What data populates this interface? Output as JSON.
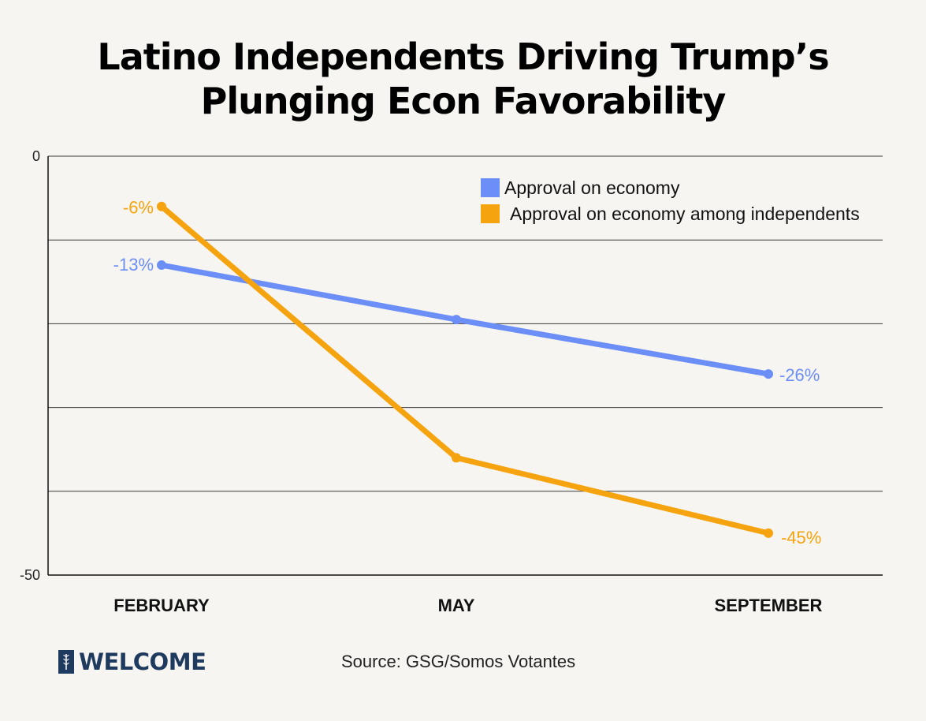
{
  "title": {
    "line1": "Latino Independents Driving Trump’s",
    "line2": "Plunging Econ Favorability"
  },
  "chart_data": {
    "type": "line",
    "title": "Latino Independents Driving Trump’s Plunging Econ Favorability",
    "categories": [
      "FEBRUARY",
      "MAY",
      "SEPTEMBER"
    ],
    "ylim": [
      -50,
      0
    ],
    "yticks": [
      0,
      -10,
      -20,
      -30,
      -40,
      -50
    ],
    "ytick_labels": [
      {
        "value": 0,
        "label": "0"
      },
      {
        "value": -50,
        "label": "-50"
      }
    ],
    "grid": true,
    "legend_position": "top-right",
    "series": [
      {
        "name": "Approval on economy",
        "color": "#6b8ff7",
        "values": [
          -13,
          -19.5,
          -26
        ],
        "labels": [
          "-13%",
          "",
          "-26%"
        ]
      },
      {
        "name": "Approval on economy among independents",
        "color": "#f5a30f",
        "values": [
          -6,
          -36,
          -45
        ],
        "labels": [
          "-6%",
          "",
          "-45%"
        ]
      }
    ]
  },
  "source": "Source: GSG/Somos Votantes",
  "logo": {
    "text": "WELCOME",
    "color": "#1e3a5f"
  }
}
